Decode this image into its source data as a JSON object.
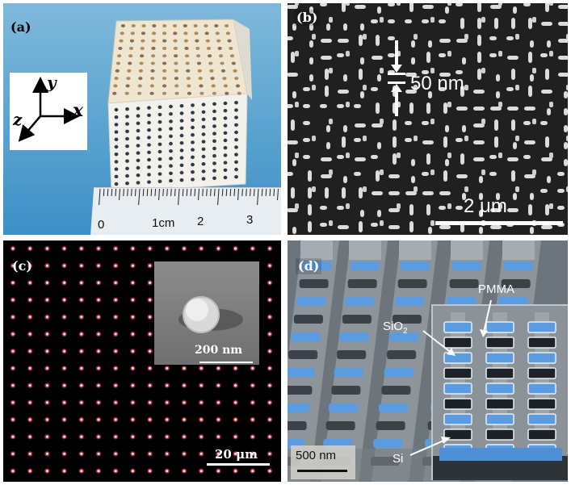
{
  "panels": {
    "a": {
      "label": "(a)",
      "axes": {
        "x": "x",
        "y": "y",
        "z": "z"
      },
      "ruler_ticks": [
        "0",
        "1cm",
        "2",
        "3"
      ]
    },
    "b": {
      "label": "(b)",
      "dimension_label": "50 nm",
      "scale_label": "2 μm"
    },
    "c": {
      "label": "(c)",
      "inset_scale_label": "200 nm",
      "scale_label": "20 μm"
    },
    "d": {
      "label": "(d)",
      "label_pmma": "PMMA",
      "label_sio2": "SiO",
      "label_sio2_sub": "2",
      "label_si": "Si",
      "scale_label": "500 nm"
    }
  },
  "colors": {
    "sio2_blue": "#5b9be0",
    "dot_red": "#ff4a60",
    "ruler": "#e8edf2"
  }
}
